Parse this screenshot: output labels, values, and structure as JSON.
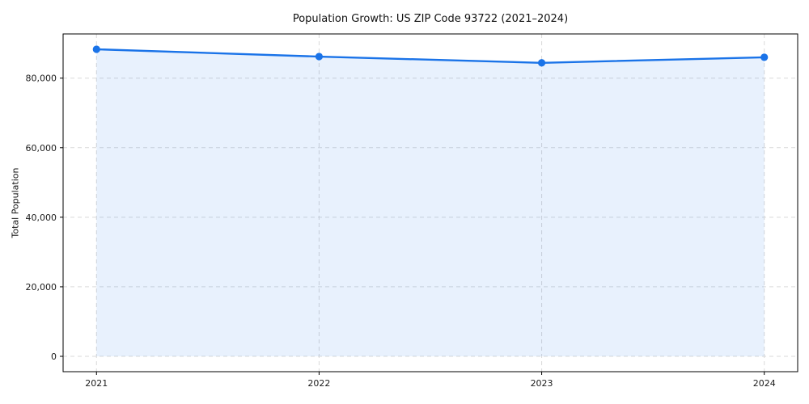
{
  "chart_data": {
    "type": "area",
    "title": "Population Growth: US ZIP Code 93722 (2021–2024)",
    "ylabel": "Total Population",
    "xlabel": "",
    "categories": [
      "2021",
      "2022",
      "2023",
      "2024"
    ],
    "series": [
      {
        "name": "Total Population",
        "values": [
          88300,
          86200,
          84400,
          86000
        ]
      }
    ],
    "yticks": [
      {
        "value": 0,
        "label": "0"
      },
      {
        "value": 20000,
        "label": "20,000"
      },
      {
        "value": 40000,
        "label": "40,000"
      },
      {
        "value": 60000,
        "label": "60,000"
      },
      {
        "value": 80000,
        "label": "80,000"
      }
    ],
    "ylim": [
      -4415,
      92715
    ],
    "xlim": [
      -0.15,
      3.15
    ],
    "grid": true,
    "legend": false,
    "colors": {
      "line": "#1a73e8",
      "marker": "#1a73e8",
      "fill": "#1a73e8",
      "fill_opacity": "0.1",
      "grid": "#d9d9d9",
      "spine": "#000000",
      "tick_text": "#1a1a1a"
    }
  }
}
